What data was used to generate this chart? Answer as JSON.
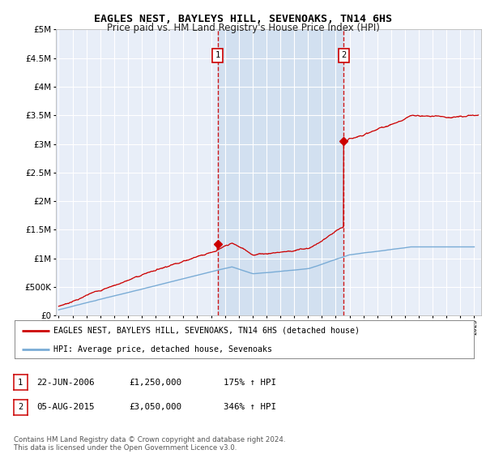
{
  "title": "EAGLES NEST, BAYLEYS HILL, SEVENOAKS, TN14 6HS",
  "subtitle": "Price paid vs. HM Land Registry's House Price Index (HPI)",
  "legend_line1": "EAGLES NEST, BAYLEYS HILL, SEVENOAKS, TN14 6HS (detached house)",
  "legend_line2": "HPI: Average price, detached house, Sevenoaks",
  "footnote": "Contains HM Land Registry data © Crown copyright and database right 2024.\nThis data is licensed under the Open Government Licence v3.0.",
  "annotation1_label": "1",
  "annotation1_date": "22-JUN-2006",
  "annotation1_price": "£1,250,000",
  "annotation1_hpi": "175% ↑ HPI",
  "annotation2_label": "2",
  "annotation2_date": "05-AUG-2015",
  "annotation2_price": "£3,050,000",
  "annotation2_hpi": "346% ↑ HPI",
  "vline1_year": 2006.47,
  "vline2_year": 2015.58,
  "sale1_year": 2006.47,
  "sale1_price": 1250000,
  "sale2_year": 2015.58,
  "sale2_price": 3050000,
  "ylim": [
    0,
    5000000
  ],
  "xlim_left": 1994.8,
  "xlim_right": 2025.5,
  "red_color": "#cc0000",
  "blue_color": "#7aacd6",
  "background_plot": "#e8eef8",
  "shade_color": "#d0dff0",
  "grid_color": "#ffffff",
  "vline_color": "#cc0000",
  "title_fontsize": 9.5,
  "subtitle_fontsize": 8.5
}
